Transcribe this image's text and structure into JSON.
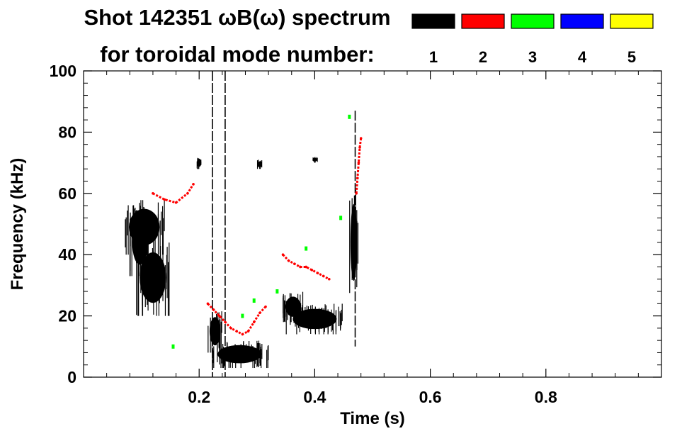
{
  "chart_data": {
    "type": "heatmap",
    "title_line1": "Shot 142351 ωB(ω) spectrum",
    "title_line2": "for toroidal mode number:",
    "xlabel": "Time (s)",
    "ylabel": "Frequency (kHz)",
    "xlim": [
      0.0,
      1.0
    ],
    "ylim": [
      0,
      100
    ],
    "x_ticks": [
      "0.2",
      "0.4",
      "0.6",
      "0.8"
    ],
    "x_tick_values": [
      0.2,
      0.4,
      0.6,
      0.8
    ],
    "y_ticks": [
      "0",
      "20",
      "40",
      "60",
      "80",
      "100"
    ],
    "y_tick_values": [
      0,
      20,
      40,
      60,
      80,
      100
    ],
    "grid": false,
    "legend": {
      "placement": "top",
      "entries": [
        {
          "label": "1",
          "color": "#000000"
        },
        {
          "label": "2",
          "color": "#ff0000"
        },
        {
          "label": "3",
          "color": "#00ff00"
        },
        {
          "label": "4",
          "color": "#0000ff"
        },
        {
          "label": "5",
          "color": "#ffff00"
        }
      ]
    },
    "regions": [
      {
        "mode": 1,
        "t0": 0.08,
        "t1": 0.115,
        "f0": 33,
        "f1": 55
      },
      {
        "mode": 1,
        "t0": 0.07,
        "t1": 0.14,
        "f0": 40,
        "f1": 58
      },
      {
        "mode": 1,
        "t0": 0.09,
        "t1": 0.15,
        "f0": 20,
        "f1": 45
      },
      {
        "mode": 1,
        "t0": 0.22,
        "t1": 0.32,
        "f0": 3,
        "f1": 12
      },
      {
        "mode": 1,
        "t0": 0.215,
        "t1": 0.24,
        "f0": 8,
        "f1": 22
      },
      {
        "mode": 1,
        "t0": 0.35,
        "t1": 0.45,
        "f0": 14,
        "f1": 24
      },
      {
        "mode": 1,
        "t0": 0.345,
        "t1": 0.38,
        "f0": 18,
        "f1": 28
      },
      {
        "mode": 1,
        "t0": 0.46,
        "t1": 0.475,
        "f0": 25,
        "f1": 63
      },
      {
        "mode": 1,
        "t0": 0.195,
        "t1": 0.205,
        "f0": 68,
        "f1": 72
      },
      {
        "mode": 1,
        "t0": 0.3,
        "t1": 0.31,
        "f0": 68,
        "f1": 71
      },
      {
        "mode": 1,
        "t0": 0.395,
        "t1": 0.405,
        "f0": 70,
        "f1": 72
      }
    ],
    "vertical_streaks": [
      {
        "mode": 1,
        "t": 0.223,
        "f0": 0,
        "f1": 100
      },
      {
        "mode": 1,
        "t": 0.245,
        "f0": 0,
        "f1": 100
      },
      {
        "mode": 1,
        "t": 0.47,
        "f0": 10,
        "f1": 87
      }
    ],
    "series": [
      {
        "mode": 2,
        "t": [
          0.215,
          0.225,
          0.235,
          0.245,
          0.255,
          0.265,
          0.275,
          0.285,
          0.295,
          0.305,
          0.315
        ],
        "f": [
          24,
          22,
          20,
          18,
          16,
          15,
          14,
          15,
          18,
          21,
          23
        ]
      },
      {
        "mode": 2,
        "t": [
          0.345,
          0.355,
          0.365,
          0.375,
          0.385,
          0.395,
          0.405,
          0.415,
          0.425
        ],
        "f": [
          40,
          38,
          37,
          36,
          36,
          35,
          34,
          33,
          32
        ]
      },
      {
        "mode": 2,
        "t": [
          0.472,
          0.474,
          0.476,
          0.478,
          0.48
        ],
        "f": [
          60,
          65,
          70,
          75,
          78
        ]
      },
      {
        "mode": 2,
        "t": [
          0.12,
          0.14,
          0.16,
          0.18,
          0.19
        ],
        "f": [
          60,
          58,
          57,
          60,
          63
        ]
      },
      {
        "mode": 3,
        "t": [
          0.155,
          0.275,
          0.295,
          0.335,
          0.385,
          0.445,
          0.46
        ],
        "f": [
          10,
          20,
          25,
          28,
          42,
          52,
          85
        ]
      }
    ]
  }
}
